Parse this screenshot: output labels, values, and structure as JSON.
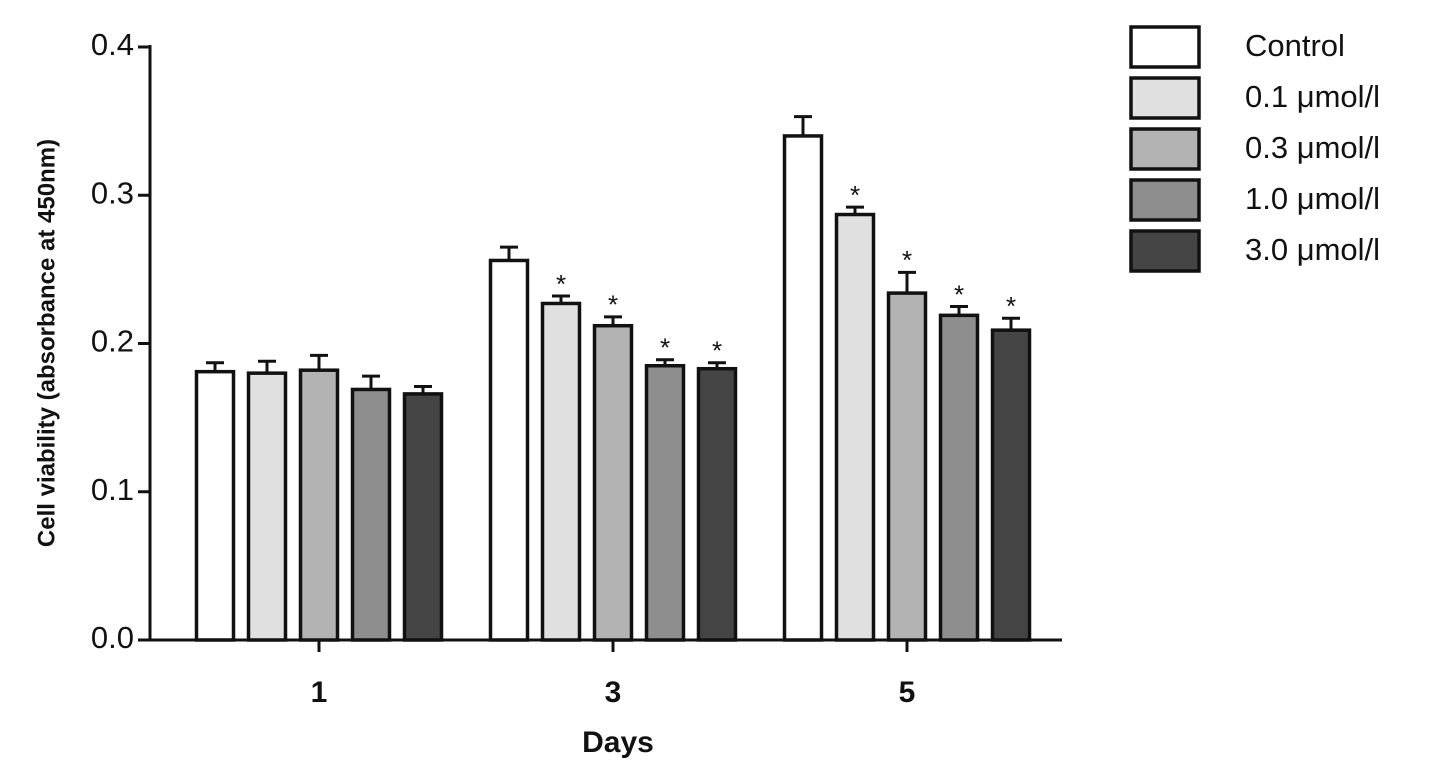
{
  "chart_data": {
    "type": "bar",
    "y_label": "Cell viability (absorbance at 450nm)",
    "x_label": "Days",
    "categories": [
      "1",
      "3",
      "5"
    ],
    "ylim": [
      0,
      0.4
    ],
    "yticks": [
      {
        "value": 0,
        "label": "0.0"
      },
      0.1,
      0.2,
      0.3,
      0.4
    ],
    "series": [
      {
        "name": "Control",
        "color": "#ffffff",
        "values": [
          0.181,
          0.256,
          0.34
        ],
        "errors": [
          0.006,
          0.009,
          0.013
        ]
      },
      {
        "name": "0.1 μmol/l",
        "color": "#e0e0e0",
        "values": [
          0.18,
          0.227,
          0.287
        ],
        "errors": [
          0.008,
          0.005,
          0.005
        ],
        "significance": [
          null,
          "*",
          "*"
        ]
      },
      {
        "name": "0.3 μmol/l",
        "color": "#b3b3b3",
        "values": [
          0.182,
          0.212,
          0.234
        ],
        "errors": [
          0.01,
          0.006,
          0.014
        ],
        "significance": [
          null,
          "*",
          "*"
        ]
      },
      {
        "name": "1.0 μmol/l",
        "color": "#8e8e8e",
        "values": [
          0.169,
          0.185,
          0.219
        ],
        "errors": [
          0.009,
          0.004,
          0.006
        ],
        "significance": [
          null,
          "*",
          "*"
        ]
      },
      {
        "name": "3.0 μmol/l",
        "color": "#454545",
        "values": [
          0.166,
          0.183,
          0.209
        ],
        "errors": [
          0.005,
          0.004,
          0.008
        ],
        "significance": [
          null,
          "*",
          "*"
        ]
      }
    ]
  }
}
